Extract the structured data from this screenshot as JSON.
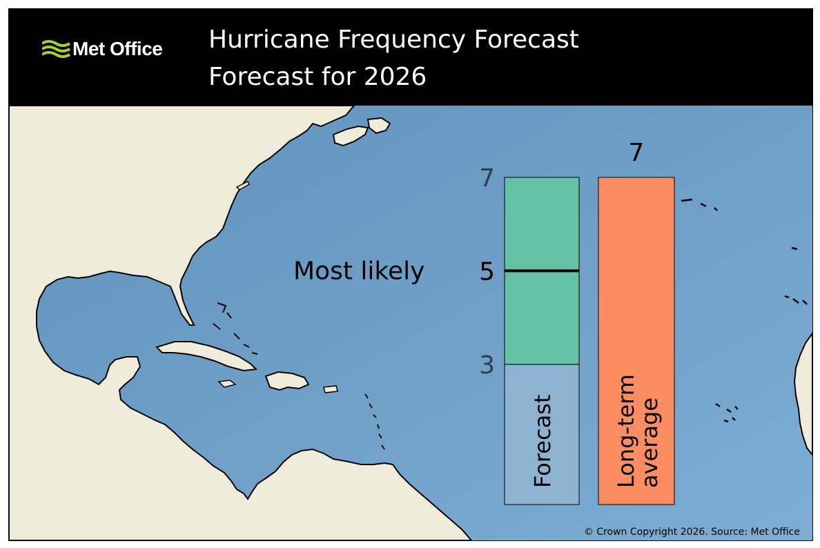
{
  "header": {
    "logo_text": "Met Office",
    "title": "Hurricane Frequency Forecast",
    "subtitle": "Forecast for 2026"
  },
  "footer": {
    "copyright": "© Crown Copyright 2026. Source: Met Office"
  },
  "colors": {
    "ocean": "#6f9fc6",
    "land": "#efecdc",
    "forecast_range": "#66c2a5",
    "forecast_lower": "#8db3d1",
    "long_term_average": "#fc8d62",
    "logo_green": "#a5d12f"
  },
  "chart_data": {
    "type": "bar",
    "categories": [
      "Forecast",
      "Long-term average"
    ],
    "forecast": {
      "label": "Forecast",
      "range_low": 3,
      "range_high": 7,
      "most_likely": 5,
      "most_likely_label": "Most likely",
      "tick_labels": [
        "7",
        "5",
        "3"
      ]
    },
    "long_term_average": {
      "label_line1": "Long-term",
      "label_line2": "average",
      "value": 7,
      "value_label": "7"
    },
    "ylim": [
      0,
      7
    ]
  }
}
